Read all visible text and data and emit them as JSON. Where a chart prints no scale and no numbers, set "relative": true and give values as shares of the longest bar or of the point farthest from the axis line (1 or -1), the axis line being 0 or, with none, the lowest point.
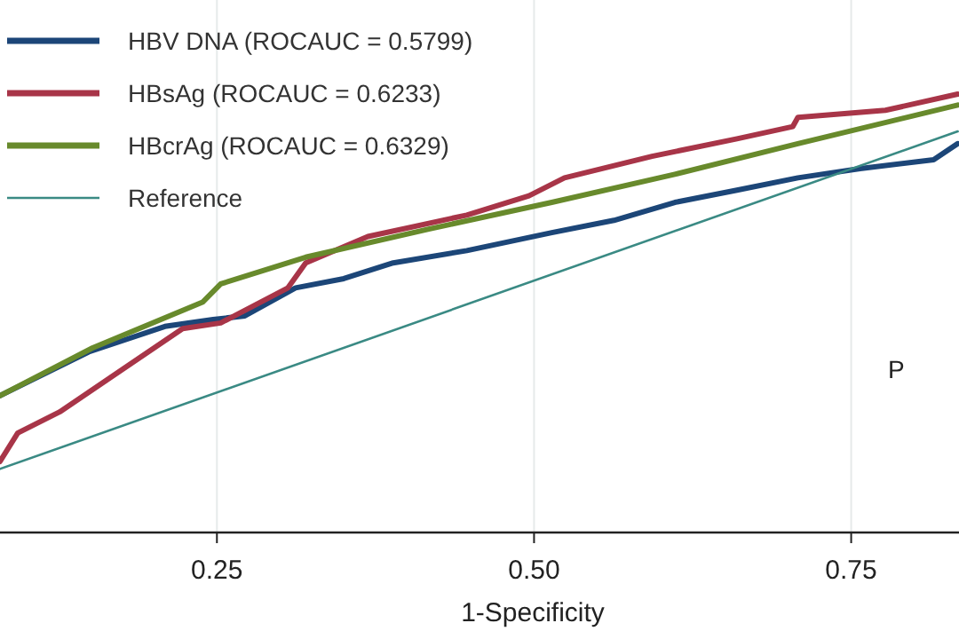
{
  "chart_data": {
    "type": "line",
    "xlabel": "1-Specificity",
    "xlim": [
      0.079,
      0.835
    ],
    "relative": true,
    "xticks": [
      {
        "value": 0.25,
        "label": "0.25"
      },
      {
        "value": 0.5,
        "label": "0.50"
      },
      {
        "value": 0.75,
        "label": "0.75"
      }
    ],
    "grid": "x",
    "legend": "top left",
    "marker": "none",
    "line_style": "solid",
    "annotations": [
      "P"
    ],
    "series": [
      {
        "name": "HBV DNA (ROCAUC = 0.5799)",
        "color": "#1c4678",
        "x": [
          0.079,
          0.149,
          0.209,
          0.247,
          0.272,
          0.312,
          0.35,
          0.389,
          0.447,
          0.514,
          0.563,
          0.611,
          0.66,
          0.708,
          0.757,
          0.815,
          0.834
        ],
        "values": [
          0.312,
          0.412,
          0.47,
          0.486,
          0.494,
          0.558,
          0.579,
          0.615,
          0.643,
          0.684,
          0.712,
          0.753,
          0.781,
          0.809,
          0.83,
          0.85,
          0.887
        ]
      },
      {
        "name": "HBsAg (ROCAUC = 0.6233)",
        "color": "#a83548",
        "x": [
          0.079,
          0.093,
          0.126,
          0.176,
          0.223,
          0.253,
          0.306,
          0.32,
          0.369,
          0.447,
          0.496,
          0.524,
          0.593,
          0.66,
          0.704,
          0.708,
          0.777,
          0.834
        ],
        "values": [
          0.162,
          0.227,
          0.275,
          0.373,
          0.465,
          0.478,
          0.558,
          0.615,
          0.675,
          0.724,
          0.768,
          0.809,
          0.858,
          0.898,
          0.926,
          0.947,
          0.963,
          1
        ]
      },
      {
        "name": "HBcrAg (ROCAUC = 0.6329)",
        "color": "#688a2c",
        "x": [
          0.079,
          0.152,
          0.239,
          0.253,
          0.32,
          0.417,
          0.514,
          0.611,
          0.708,
          0.834
        ],
        "values": [
          0.312,
          0.421,
          0.526,
          0.567,
          0.628,
          0.692,
          0.753,
          0.817,
          0.887,
          0.975
        ]
      },
      {
        "name": "Reference",
        "color": "#3a8a84",
        "x": [
          0.079,
          0.834
        ],
        "values": [
          0.145,
          0.915
        ]
      }
    ]
  }
}
